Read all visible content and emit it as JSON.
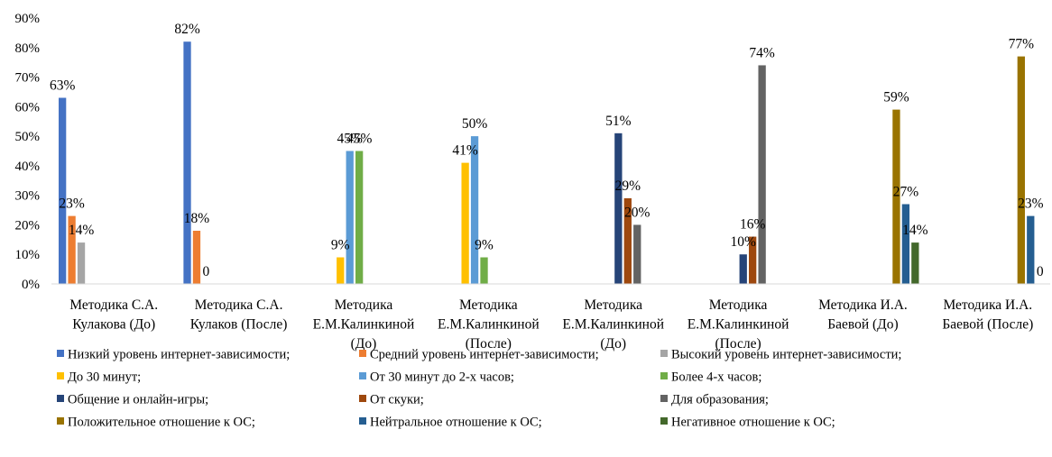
{
  "chart_data": {
    "type": "bar",
    "ylim": [
      0,
      90
    ],
    "yticks": [
      "0%",
      "10%",
      "20%",
      "30%",
      "40%",
      "50%",
      "60%",
      "70%",
      "80%",
      "90%"
    ],
    "grid": false,
    "legend_position": "bottom",
    "categories": [
      [
        "Методика С.А.",
        "Кулакова (До)"
      ],
      [
        "Методика С.А.",
        "Кулаков (После)"
      ],
      [
        "Методика",
        "Е.М.Калинкиной",
        "(До)"
      ],
      [
        "Методика",
        "Е.М.Калинкиной",
        "(После)"
      ],
      [
        "Методика",
        "Е.М.Калинкиной",
        "(До)"
      ],
      [
        "Методика",
        "Е.М.Калинкиной",
        "(После)"
      ],
      [
        "Методика И.А.",
        "Баевой (До)"
      ],
      [
        "Методика И.А.",
        "Баевой (После)"
      ]
    ],
    "series": [
      {
        "name": "Низкий уровень интернет-зависимости;",
        "color": "#4472C4",
        "values": [
          63,
          82,
          null,
          null,
          null,
          null,
          null,
          null
        ],
        "labels": [
          "63%",
          "82%",
          "",
          "",
          "",
          "",
          "",
          ""
        ]
      },
      {
        "name": "Средний уровень интернет-зависимости;",
        "color": "#ED7D31",
        "values": [
          23,
          18,
          null,
          null,
          null,
          null,
          null,
          null
        ],
        "labels": [
          "23%",
          "18%",
          "",
          "",
          "",
          "",
          "",
          ""
        ]
      },
      {
        "name": "Высокий уровень интернет-зависимости;",
        "color": "#A5A5A5",
        "values": [
          14,
          0,
          null,
          null,
          null,
          null,
          null,
          null
        ],
        "labels": [
          "14%",
          "0",
          "",
          "",
          "",
          "",
          "",
          ""
        ]
      },
      {
        "name": "До 30 минут;",
        "color": "#FFC000",
        "values": [
          null,
          null,
          9,
          41,
          null,
          null,
          null,
          null
        ],
        "labels": [
          "",
          "",
          "9%",
          "41%",
          "",
          "",
          "",
          ""
        ]
      },
      {
        "name": "От 30 минут до 2-х часов;",
        "color": "#5B9BD5",
        "values": [
          null,
          null,
          45,
          50,
          null,
          null,
          null,
          null
        ],
        "labels": [
          "",
          "",
          "45%",
          "50%",
          "",
          "",
          "",
          ""
        ]
      },
      {
        "name": "Более 4-х часов;",
        "color": "#70AD47",
        "values": [
          null,
          null,
          45,
          9,
          null,
          null,
          null,
          null
        ],
        "labels": [
          "",
          "",
          "45%",
          "9%",
          "",
          "",
          "",
          ""
        ]
      },
      {
        "name": "Общение и онлайн-игры;",
        "color": "#264478",
        "values": [
          null,
          null,
          null,
          null,
          51,
          10,
          null,
          null
        ],
        "labels": [
          "",
          "",
          "",
          "",
          "51%",
          "10%",
          "",
          ""
        ]
      },
      {
        "name": "От скуки;",
        "color": "#9E480E",
        "values": [
          null,
          null,
          null,
          null,
          29,
          16,
          null,
          null
        ],
        "labels": [
          "",
          "",
          "",
          "",
          "29%",
          "16%",
          "",
          ""
        ]
      },
      {
        "name": "Для образования;",
        "color": "#636363",
        "values": [
          null,
          null,
          null,
          null,
          20,
          74,
          null,
          null
        ],
        "labels": [
          "",
          "",
          "",
          "",
          "20%",
          "74%",
          "",
          ""
        ]
      },
      {
        "name": "Положительное отношение к ОС;",
        "color": "#997300",
        "values": [
          null,
          null,
          null,
          null,
          null,
          null,
          59,
          77
        ],
        "labels": [
          "",
          "",
          "",
          "",
          "",
          "",
          "59%",
          "77%"
        ]
      },
      {
        "name": "Нейтральное отношение к ОС;",
        "color": "#255E91",
        "values": [
          null,
          null,
          null,
          null,
          null,
          null,
          27,
          23
        ],
        "labels": [
          "",
          "",
          "",
          "",
          "",
          "",
          "27%",
          "23%"
        ]
      },
      {
        "name": "Негативное отношение к ОС;",
        "color": "#43682B",
        "values": [
          null,
          null,
          null,
          null,
          null,
          null,
          14,
          0
        ],
        "labels": [
          "",
          "",
          "",
          "",
          "",
          "",
          "14%",
          "0"
        ]
      }
    ]
  }
}
